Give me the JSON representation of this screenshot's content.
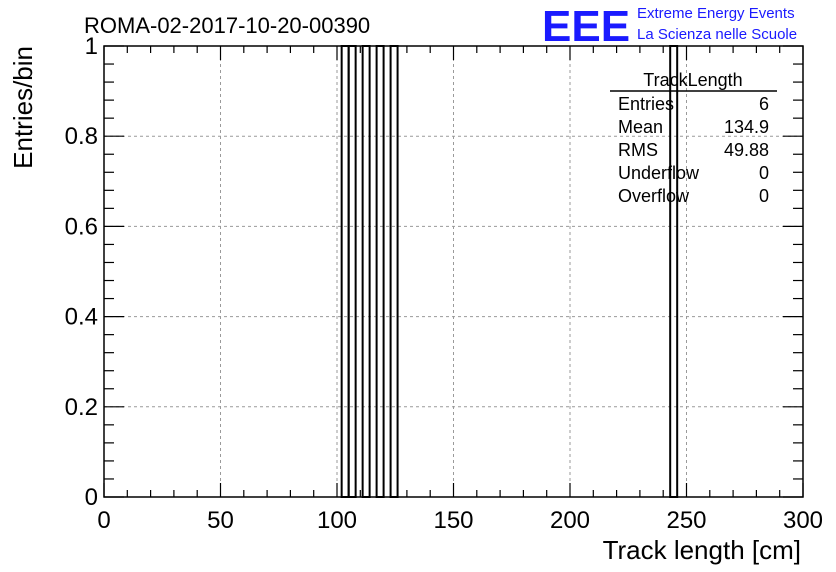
{
  "chart_data": {
    "type": "bar",
    "title": "ROMA-02-2017-10-20-00390",
    "xlabel": "Track length [cm]",
    "ylabel": "Entries/bin",
    "xlim": [
      0,
      300
    ],
    "ylim": [
      0,
      1
    ],
    "x_ticks": [
      0,
      50,
      100,
      150,
      200,
      250,
      300
    ],
    "y_ticks": [
      0,
      0.2,
      0.4,
      0.6,
      0.8,
      1
    ],
    "x_tick_labels": [
      "0",
      "50",
      "100",
      "150",
      "200",
      "250",
      "300"
    ],
    "y_tick_labels": [
      "0",
      "0.2",
      "0.4",
      "0.6",
      "0.8",
      "1"
    ],
    "grid": true,
    "bin_width": 3,
    "bins": [
      {
        "x_low": 102,
        "x_high": 105,
        "value": 1
      },
      {
        "x_low": 105,
        "x_high": 108,
        "value": 1
      },
      {
        "x_low": 111,
        "x_high": 114,
        "value": 1
      },
      {
        "x_low": 117,
        "x_high": 120,
        "value": 1
      },
      {
        "x_low": 123,
        "x_high": 126,
        "value": 1
      },
      {
        "x_low": 243,
        "x_high": 246,
        "value": 1
      }
    ]
  },
  "stats_box": {
    "title": "TrackLength",
    "rows": [
      {
        "label": "Entries",
        "value": "6"
      },
      {
        "label": "Mean",
        "value": "134.9"
      },
      {
        "label": "RMS",
        "value": "49.88"
      },
      {
        "label": "Underflow",
        "value": "0"
      },
      {
        "label": "Overflow",
        "value": "0"
      }
    ]
  },
  "logo": {
    "mark": "EEE",
    "line1": "Extreme Energy Events",
    "line2": "La Scienza nelle Scuole",
    "color": "#1a1aff"
  }
}
